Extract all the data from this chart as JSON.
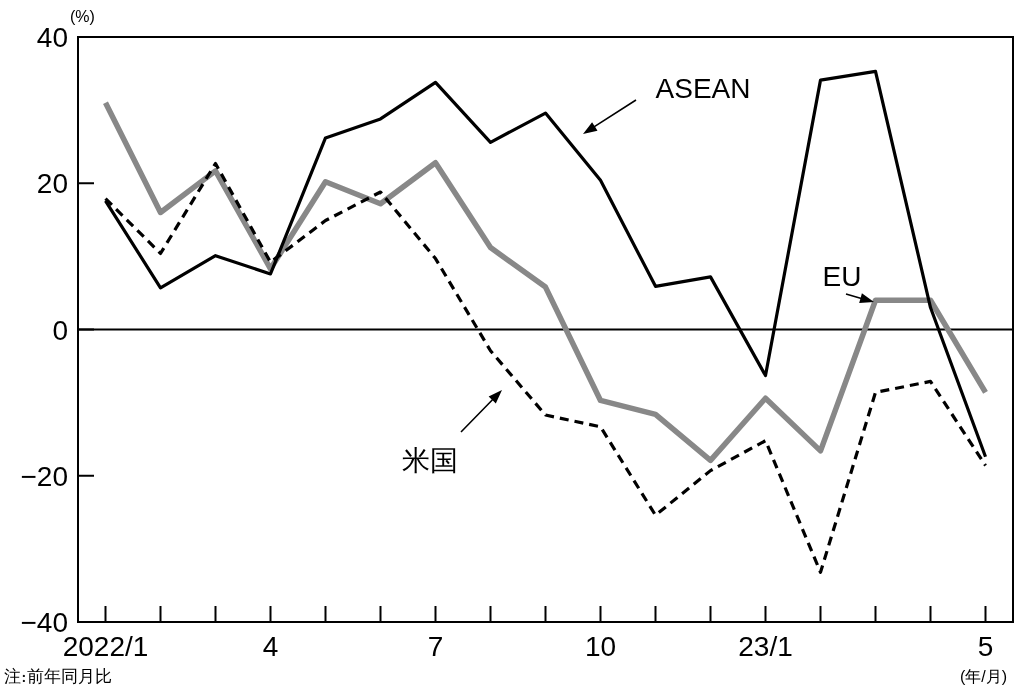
{
  "chart_data": {
    "type": "line",
    "categories": [
      "2022/1",
      null,
      null,
      "4",
      null,
      null,
      "7",
      null,
      null,
      "10",
      null,
      null,
      "23/1",
      null,
      null,
      null,
      "5"
    ],
    "series": [
      {
        "name": "ASEAN",
        "color": "#000000",
        "line_style": "solid",
        "values": [
          17.6,
          5.7,
          10.1,
          7.6,
          26.2,
          28.8,
          33.8,
          25.6,
          29.6,
          20.4,
          5.9,
          7.2,
          -6.3,
          34.1,
          35.3,
          3.0,
          -17.4
        ]
      },
      {
        "name": "EU",
        "color": "#888888",
        "line_style": "solid",
        "values": [
          31.0,
          16.0,
          21.7,
          8.3,
          20.2,
          17.2,
          22.8,
          11.2,
          5.8,
          -9.7,
          -11.6,
          -17.9,
          -9.4,
          -16.6,
          4.0,
          4.0,
          -8.6
        ]
      },
      {
        "name": "米国",
        "color": "#000000",
        "line_style": "dashed",
        "values": [
          17.9,
          10.4,
          22.7,
          9.2,
          14.9,
          18.8,
          9.7,
          -2.9,
          -11.7,
          -13.3,
          -25.4,
          -19.3,
          -15.2,
          -33.2,
          -8.6,
          -7.1,
          -18.6
        ]
      }
    ],
    "ylim": [
      -40,
      40
    ],
    "yticks": [
      -40,
      -20,
      0,
      20,
      40
    ],
    "ylabel": "(%)",
    "xlabel": "(年/月)",
    "ref_lines": [
      {
        "axis": "y",
        "value": 0
      }
    ],
    "marker": "none",
    "annotations": [
      "注:前年同月比"
    ]
  }
}
